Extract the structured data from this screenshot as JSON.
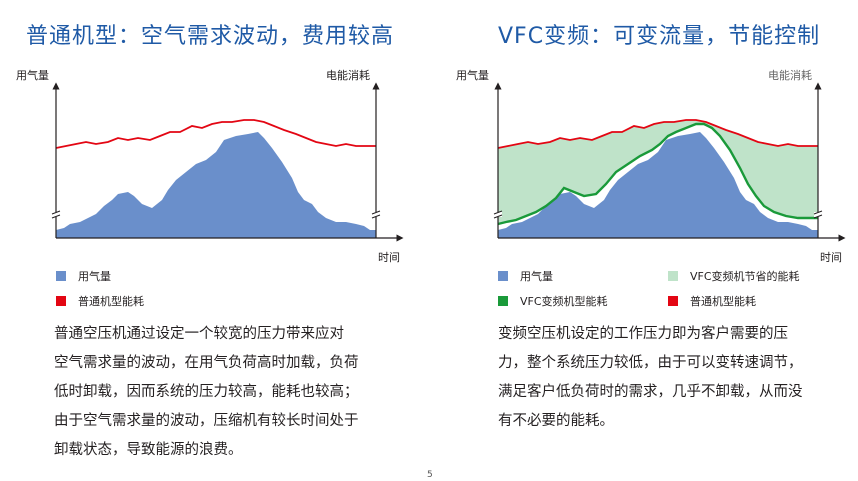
{
  "left": {
    "title": "普通机型：空气需求波动，费用较高",
    "y_label": "用气量",
    "y2_label": "电能消耗",
    "x_label": "时间",
    "legend": [
      {
        "label": "用气量",
        "color": "#6a8fcb"
      },
      {
        "label": "普通机型能耗",
        "color": "#e30613"
      }
    ],
    "paragraph": [
      "普通空压机通过设定一个较宽的压力带来应对",
      "空气需求量的波动，在用气负荷高时加载，负荷",
      "低时卸载，因而系统的压力较高，能耗也较高；",
      "由于空气需求量的波动，压缩机有较长时间处于",
      "卸载状态，导致能源的浪费。"
    ]
  },
  "right": {
    "title": "VFC变频：可变流量，节能控制",
    "y_label": "用气量",
    "y2_label": "电能消耗",
    "x_label": "时间",
    "legend": [
      {
        "label": "用气量",
        "color": "#6a8fcb"
      },
      {
        "label": "VFC变频机节省的能耗",
        "color": "#bfe3c9"
      },
      {
        "label": "VFC变频机型能耗",
        "color": "#1a9a3a"
      },
      {
        "label": "普通机型能耗",
        "color": "#e30613"
      }
    ],
    "paragraph": [
      "变频空压机设定的工作压力即为客户需要的压",
      "力，整个系统压力较低，由于可以变转速调节，",
      "满足客户低负荷时的需求，几乎不卸载，从而没",
      "有不必要的能耗。"
    ]
  },
  "page_number": "5"
}
